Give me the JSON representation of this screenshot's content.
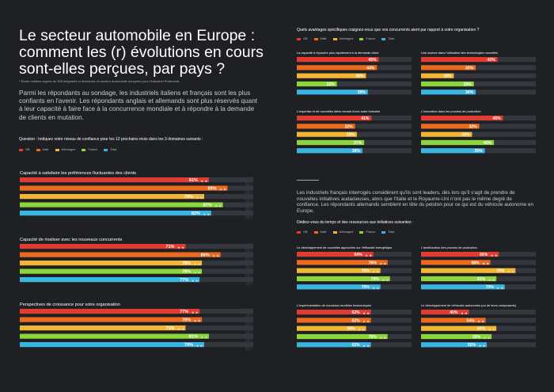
{
  "title": "Le secteur automobile en Europe : comment les (r) évolutions en cours sont-elles perçues, par pays ?",
  "note": "* Étude réalisée auprès de 300 dirigeants et décideurs du secteur automobile européen pour l'industriel Proboostic",
  "intro": "Parmi les répondants au sondage, les industriels italiens et français sont les plus confiants en l'avenir.  Les répondants anglais et allemands sont plus réservés quant à leur capacité à faire face à la concurrence mondiale et à répondre à la demande de clients en mutation.",
  "left_question": "Question : Indiquez votre niveau de confiance pour les 12 prochains mois dans les 3 domaines suivants :",
  "right_question": "Quels avantages spécifiques craignez-vous que vos concurrents aient par rapport à votre organisation ?",
  "right_text": "Les industriels français interrogés considèrent qu'ils sont leaders, dès lors qu'il s'agit de prendre de nouvelles initiatives audacieuses, alors que l'Italie et le Royaume-Uni n'ont pas le même degré de confiance. Les répondants allemands semblent en tête du peloton pour ce qui est du véhicule autonome en Europe.",
  "right_question2": "Dédiez-vous du temps et des ressources aux initiatives suivantes :",
  "legend": [
    "GB",
    "Italie",
    "Allemagne",
    "France",
    "Total"
  ],
  "colors": {
    "GB": "#e03c31",
    "Italie": "#ec6a1e",
    "Allemagne": "#f2b632",
    "France": "#8cd53a",
    "Total": "#3ab4e0",
    "track": "#34373d"
  },
  "chart_data": [
    {
      "type": "bar",
      "title": "Capacité à satisfaire les préférences fluctuantes des clients",
      "categories": [
        "GB",
        "Italie",
        "Allemagne",
        "France",
        "Total"
      ],
      "values": [
        81,
        89,
        79,
        87,
        82
      ]
    },
    {
      "type": "bar",
      "title": "Capacité de rivaliser avec les nouveaux concurrents",
      "categories": [
        "GB",
        "Italie",
        "Allemagne",
        "France",
        "Total"
      ],
      "values": [
        71,
        86,
        78,
        78,
        77
      ]
    },
    {
      "type": "bar",
      "title": "Perspectives de croissance pour votre organisation",
      "categories": [
        "GB",
        "Italie",
        "Allemagne",
        "France",
        "Total"
      ],
      "values": [
        77,
        78,
        71,
        81,
        79
      ]
    },
    {
      "type": "bar",
      "title": "La capacité à répondre plus rapidement à la demande client",
      "categories": [
        "GB",
        "Italie",
        "Allemagne",
        "France",
        "Total"
      ],
      "values": [
        45,
        44,
        38,
        22,
        39
      ]
    },
    {
      "type": "bar",
      "title": "Une avance dans l'utilisation des technologies nouvelles",
      "categories": [
        "GB",
        "Italie",
        "Allemagne",
        "France",
        "Total"
      ],
      "values": [
        42,
        30,
        18,
        29,
        30
      ]
    },
    {
      "type": "bar",
      "title": "L'expertise et de nouvelles idées venant d'une autre industrie",
      "categories": [
        "GB",
        "Italie",
        "Allemagne",
        "France",
        "Total"
      ],
      "values": [
        41,
        32,
        33,
        37,
        36
      ]
    },
    {
      "type": "bar",
      "title": "L'innovation dans les process de production",
      "categories": [
        "GB",
        "Italie",
        "Allemagne",
        "France",
        "Total"
      ],
      "values": [
        45,
        32,
        28,
        40,
        35
      ]
    },
    {
      "type": "bar",
      "title": "Le développement de nouvelles approches sur l'efficacité énergétique",
      "categories": [
        "GB",
        "Italie",
        "Allemagne",
        "France",
        "Total"
      ],
      "values": [
        64,
        76,
        70,
        78,
        70
      ]
    },
    {
      "type": "bar",
      "title": "L'amélioration des process de production",
      "categories": [
        "GB",
        "Italie",
        "Allemagne",
        "France",
        "Total"
      ],
      "values": [
        65,
        58,
        79,
        63,
        70
      ]
    },
    {
      "type": "bar",
      "title": "L'expérimentation de nouveaux modèles économiques",
      "categories": [
        "GB",
        "Italie",
        "Allemagne",
        "France",
        "Total"
      ],
      "values": [
        62,
        62,
        58,
        76,
        62
      ]
    },
    {
      "type": "bar",
      "title": "Le développement de véhicules autonomes (ou de leurs composants)",
      "categories": [
        "GB",
        "Italie",
        "Allemagne",
        "France",
        "Total"
      ],
      "values": [
        40,
        54,
        63,
        59,
        55
      ]
    }
  ]
}
